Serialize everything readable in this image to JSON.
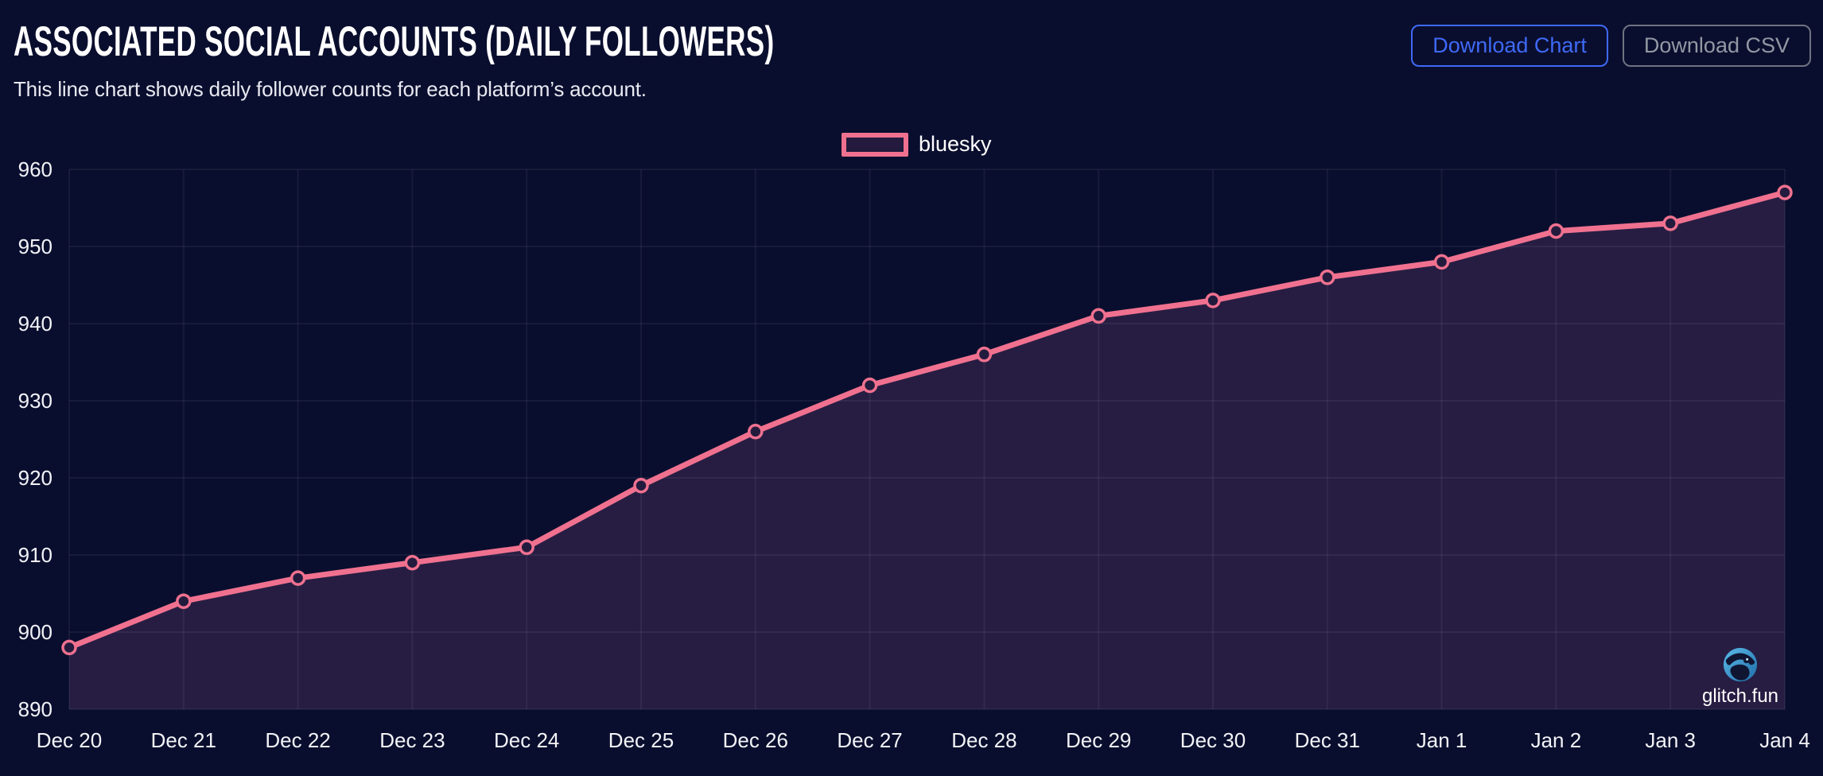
{
  "header": {
    "title": "ASSOCIATED SOCIAL ACCOUNTS (DAILY FOLLOWERS)",
    "subtitle": "This line chart shows daily follower counts for each platform’s account.",
    "buttons": {
      "download_chart": "Download Chart",
      "download_csv": "Download CSV"
    }
  },
  "legend": {
    "items": [
      {
        "label": "bluesky",
        "color": "#f0718f"
      }
    ],
    "position": "top-center"
  },
  "watermark": {
    "label": "glitch.fun",
    "logo": "glitch-fun-bird-logo"
  },
  "colors": {
    "background": "#0a0e2e",
    "accent_line": "#f0718f",
    "area_fill": "#271d43",
    "grid": "rgba(255,255,255,0.055)",
    "axis_text": "#f2f3f7",
    "button_primary": "#3f69f7",
    "button_secondary_border": "#6e7382",
    "button_secondary_text": "#9298a3",
    "marker_fill": "#231b3e"
  },
  "chart_data": {
    "type": "line",
    "title": "ASSOCIATED SOCIAL ACCOUNTS (DAILY FOLLOWERS)",
    "xlabel": "",
    "ylabel": "",
    "categories": [
      "Dec 20",
      "Dec 21",
      "Dec 22",
      "Dec 23",
      "Dec 24",
      "Dec 25",
      "Dec 26",
      "Dec 27",
      "Dec 28",
      "Dec 29",
      "Dec 30",
      "Dec 31",
      "Jan 1",
      "Jan 2",
      "Jan 3",
      "Jan 4"
    ],
    "series": [
      {
        "name": "bluesky",
        "values": [
          898,
          904,
          907,
          909,
          911,
          919,
          926,
          932,
          936,
          941,
          943,
          946,
          948,
          952,
          953,
          957
        ]
      }
    ],
    "ylim": [
      890,
      960
    ],
    "yticks": [
      890,
      900,
      910,
      920,
      930,
      940,
      950,
      960
    ],
    "grid": true,
    "legend_position": "top-center",
    "line_color": "#f0718f",
    "area_fill_color": "#271d43",
    "marker": "open-circle"
  }
}
